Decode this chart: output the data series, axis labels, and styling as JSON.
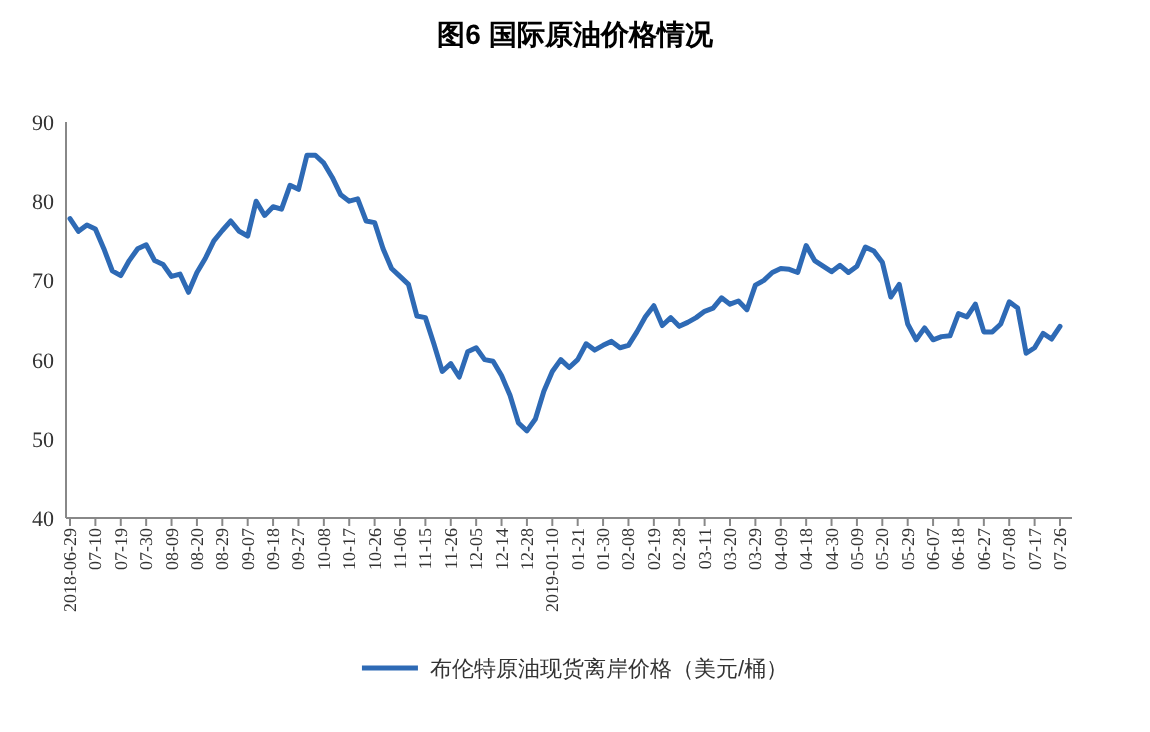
{
  "chart_data": {
    "type": "line",
    "title": "图6 国际原油价格情况",
    "categories": [
      "2018-06-29",
      null,
      null,
      "07-10",
      null,
      null,
      "07-19",
      null,
      null,
      "07-30",
      null,
      null,
      "08-09",
      null,
      null,
      "08-20",
      null,
      null,
      "08-29",
      null,
      null,
      "09-07",
      null,
      null,
      "09-18",
      null,
      null,
      "09-27",
      null,
      null,
      "10-08",
      null,
      null,
      "10-17",
      null,
      null,
      "10-26",
      null,
      null,
      "11-06",
      null,
      null,
      "11-15",
      null,
      null,
      "11-26",
      null,
      null,
      "12-05",
      null,
      null,
      "12-14",
      null,
      null,
      "12-28",
      null,
      null,
      "2019-01-10",
      null,
      null,
      "01-21",
      null,
      null,
      "01-30",
      null,
      null,
      "02-08",
      null,
      null,
      "02-19",
      null,
      null,
      "02-28",
      null,
      null,
      "03-11",
      null,
      null,
      "03-20",
      null,
      null,
      "03-29",
      null,
      null,
      "04-09",
      null,
      null,
      "04-18",
      null,
      null,
      "04-30",
      null,
      null,
      "05-09",
      null,
      null,
      "05-20",
      null,
      null,
      "05-29",
      null,
      null,
      "06-07",
      null,
      null,
      "06-18",
      null,
      null,
      "06-27",
      null,
      null,
      "07-08",
      null,
      null,
      "07-17",
      null,
      null,
      "07-26"
    ],
    "series": [
      {
        "name": "布伦特原油现货离岸价格（美元/桶）",
        "color": "#2e6ab5",
        "values": [
          77.8,
          76.2,
          77.0,
          76.5,
          74.0,
          71.2,
          70.6,
          72.5,
          74.0,
          74.5,
          72.5,
          72.0,
          70.5,
          70.8,
          68.5,
          71.0,
          72.8,
          75.0,
          76.3,
          77.5,
          76.2,
          75.6,
          80.0,
          78.2,
          79.3,
          79.0,
          82.0,
          81.5,
          85.8,
          85.8,
          84.8,
          83.0,
          80.8,
          80.0,
          80.3,
          77.5,
          77.3,
          74.0,
          71.5,
          70.5,
          69.5,
          65.5,
          65.3,
          62.0,
          58.5,
          59.5,
          57.8,
          61.0,
          61.5,
          60.0,
          59.8,
          58.0,
          55.5,
          52.0,
          51.0,
          52.5,
          56.0,
          58.5,
          60.0,
          59.0,
          60.0,
          62.0,
          61.2,
          61.8,
          62.3,
          61.5,
          61.8,
          63.5,
          65.4,
          66.8,
          64.3,
          65.3,
          64.2,
          64.7,
          65.3,
          66.1,
          66.5,
          67.8,
          67.0,
          67.4,
          66.3,
          69.4,
          70.0,
          71.0,
          71.5,
          71.4,
          71.0,
          74.4,
          72.5,
          71.8,
          71.1,
          71.9,
          71.0,
          71.8,
          74.2,
          73.7,
          72.3,
          67.9,
          69.5,
          64.5,
          62.5,
          64.0,
          62.5,
          62.9,
          63.0,
          65.8,
          65.4,
          67.0,
          63.5,
          63.5,
          64.5,
          67.3,
          66.5,
          60.8,
          61.5,
          63.3,
          62.6,
          64.2
        ]
      }
    ],
    "ylim": [
      40,
      90
    ],
    "yticks": [
      40,
      50,
      60,
      70,
      80,
      90
    ],
    "legend": "bottom",
    "line_style": "solid",
    "marker": "none"
  }
}
